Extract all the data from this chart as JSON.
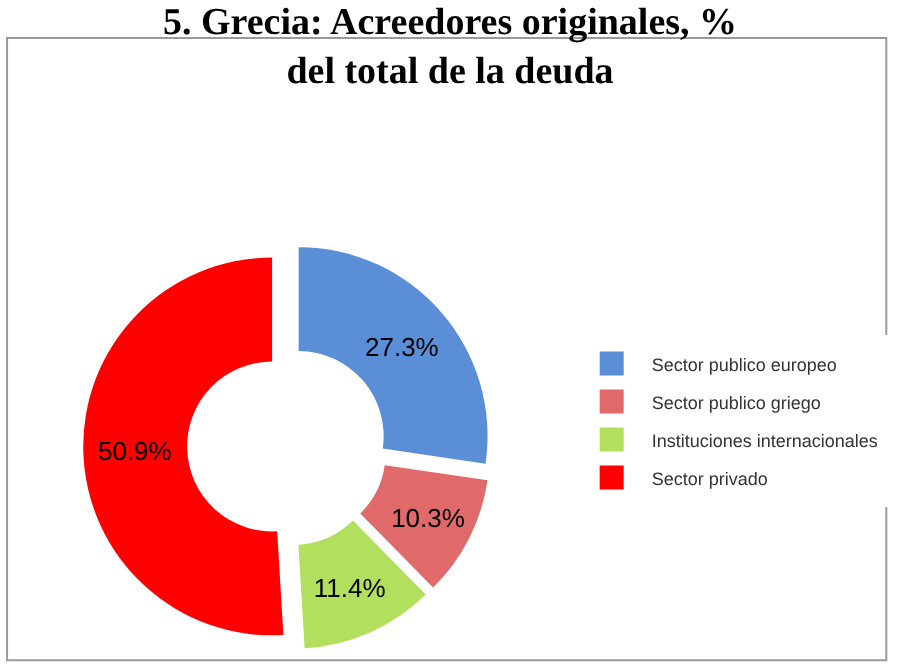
{
  "chart_data": {
    "type": "donut",
    "title": "5. Grecia: Acreedores originales, % del total de la deuda",
    "categories": [
      "Sector publico europeo",
      "Sector publico griego",
      "Instituciones internacionales",
      "Sector privado"
    ],
    "values": [
      27.3,
      10.3,
      11.4,
      50.9
    ],
    "value_labels": [
      "27.3%",
      "10.3%",
      "11.4%",
      "50.9%"
    ],
    "colors": [
      "#5a8ed6",
      "#e06a6a",
      "#b3df5e",
      "#ff0000"
    ],
    "legend": "right"
  }
}
